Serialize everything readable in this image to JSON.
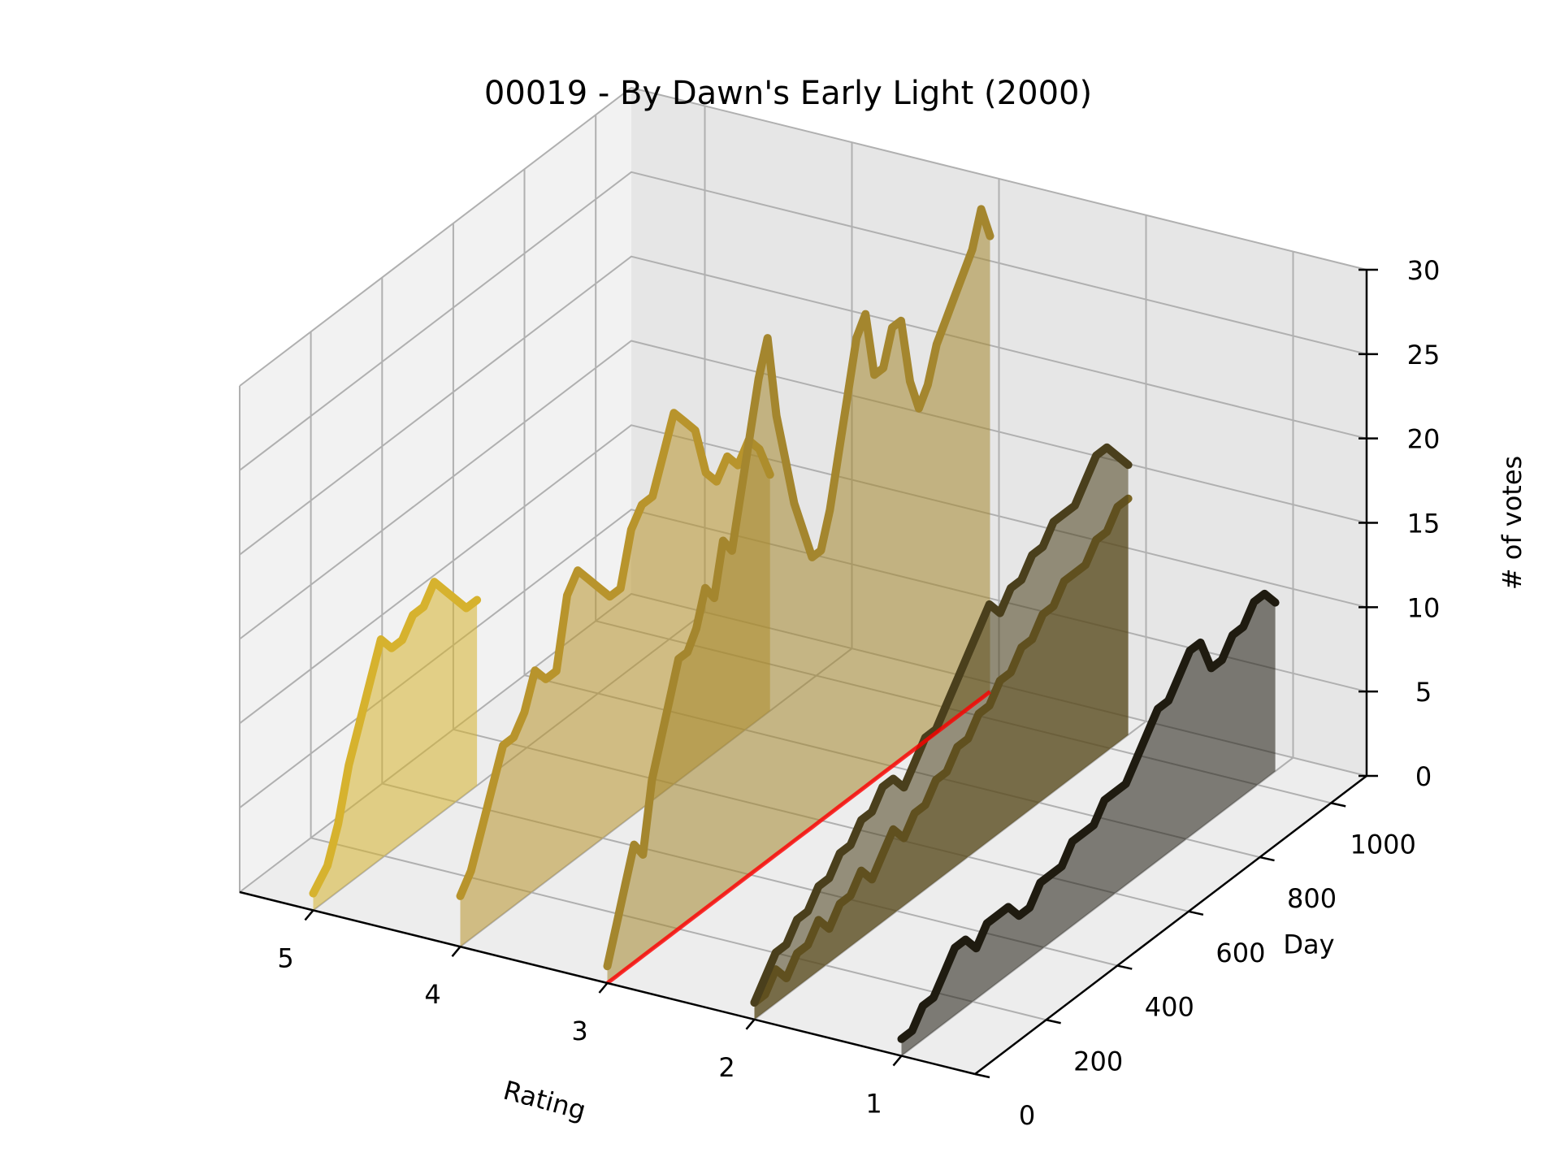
{
  "chart_data": {
    "type": "3d-line",
    "title": "00019 - By Dawn's Early Light (2000)",
    "xlabel": "Rating",
    "ylabel": "Day",
    "zlabel": "# of votes",
    "xlim": [
      0.5,
      5.5
    ],
    "ylim": [
      0,
      1100
    ],
    "zlim": [
      0,
      30
    ],
    "x_ticks": [
      "1",
      "2",
      "3",
      "4",
      "5"
    ],
    "y_ticks": [
      "0",
      "200",
      "400",
      "600",
      "800",
      "1000"
    ],
    "z_ticks": [
      "0",
      "5",
      "10",
      "15",
      "20",
      "25",
      "30"
    ],
    "grid": true,
    "series": [
      {
        "rating": 5,
        "color": "#d6b22e",
        "day": [
          0,
          40,
          70,
          100,
          130,
          160,
          190,
          220,
          250,
          280,
          310,
          340,
          370,
          400,
          430,
          460
        ],
        "votes": [
          1,
          2,
          4,
          7,
          9,
          11,
          13,
          12,
          12,
          13,
          13,
          14,
          13,
          12,
          11,
          11
        ]
      },
      {
        "rating": 4,
        "color": "#b8942c",
        "day": [
          0,
          30,
          60,
          90,
          120,
          150,
          180,
          210,
          240,
          270,
          300,
          330,
          360,
          390,
          420,
          450,
          480,
          510,
          540,
          570,
          600,
          630,
          660,
          690,
          720,
          750,
          780,
          810,
          840,
          870
        ],
        "votes": [
          3,
          4,
          6,
          8,
          10,
          10,
          11,
          13,
          12,
          12,
          16,
          17,
          16,
          15,
          14,
          14,
          17,
          18,
          18,
          20,
          22,
          21,
          20,
          17,
          16,
          17,
          16,
          17,
          16,
          14
        ]
      },
      {
        "rating": 3,
        "color": "#a4862e",
        "day": [
          0,
          25,
          50,
          75,
          100,
          125,
          150,
          175,
          200,
          225,
          250,
          275,
          300,
          325,
          350,
          375,
          400,
          425,
          450,
          475,
          500,
          525,
          550,
          575,
          600,
          625,
          650,
          675,
          700,
          725,
          750,
          775,
          800,
          825,
          850,
          875,
          900,
          925,
          950,
          975,
          1000,
          1025,
          1050,
          1075
        ],
        "votes": [
          1,
          3,
          5,
          7,
          6,
          10,
          12,
          14,
          16,
          16,
          17,
          19,
          18,
          21,
          20,
          23,
          26,
          29,
          31,
          26,
          23,
          20,
          18,
          16,
          16,
          18,
          21,
          24,
          27,
          28,
          24,
          24,
          26,
          26,
          22,
          20,
          21,
          23,
          24,
          25,
          26,
          27,
          29,
          27
        ]
      },
      {
        "rating": 2,
        "color": "#7a6524",
        "day": [
          0,
          30,
          60,
          90,
          120,
          150,
          180,
          210,
          240,
          270,
          300,
          330,
          360,
          390,
          420,
          450,
          480,
          510,
          540,
          570,
          600,
          630,
          660,
          690,
          720,
          750,
          780,
          810,
          840,
          870,
          900,
          930,
          960,
          990,
          1020,
          1050
        ],
        "votes": [
          1,
          1,
          2,
          1,
          2,
          2,
          3,
          2,
          3,
          3,
          4,
          3,
          4,
          5,
          4,
          5,
          5,
          6,
          6,
          7,
          7,
          8,
          8,
          9,
          9,
          10,
          10,
          11,
          11,
          12,
          12,
          12,
          13,
          13,
          14,
          14
        ]
      },
      {
        "rating": 2,
        "color": "#4a3f1c",
        "day": [
          0,
          30,
          60,
          90,
          120,
          150,
          180,
          210,
          240,
          270,
          300,
          330,
          360,
          390,
          420,
          450,
          480,
          510,
          540,
          570,
          600,
          630,
          660,
          690,
          720,
          750,
          780,
          810,
          840,
          870,
          900,
          930,
          960,
          990,
          1020,
          1050
        ],
        "votes": [
          1,
          2,
          3,
          3,
          4,
          4,
          5,
          5,
          6,
          6,
          7,
          7,
          8,
          8,
          7,
          8,
          9,
          9,
          10,
          11,
          12,
          13,
          14,
          13,
          14,
          14,
          15,
          15,
          16,
          16,
          16,
          17,
          18,
          18,
          17,
          16
        ]
      },
      {
        "rating": 1,
        "color": "#1f1b10",
        "day": [
          0,
          30,
          60,
          90,
          120,
          150,
          180,
          210,
          240,
          270,
          300,
          330,
          360,
          390,
          420,
          450,
          480,
          510,
          540,
          570,
          600,
          630,
          660,
          690,
          720,
          750,
          780,
          810,
          840,
          870,
          900,
          930,
          960,
          990,
          1020,
          1050
        ],
        "votes": [
          1,
          1,
          2,
          2,
          3,
          4,
          4,
          3,
          4,
          4,
          4,
          3,
          3,
          4,
          4,
          4,
          5,
          5,
          5,
          6,
          6,
          6,
          7,
          8,
          9,
          9,
          10,
          11,
          11,
          9,
          9,
          10,
          10,
          11,
          11,
          10
        ]
      }
    ]
  },
  "colors": {
    "background": "#ffffff",
    "pane_left": "#f2f2f2",
    "pane_right": "#e6e6e6",
    "pane_floor": "#ededed",
    "grid": "#b0b0b0",
    "axis_line": "#000000",
    "highlight": "#ff0000"
  }
}
